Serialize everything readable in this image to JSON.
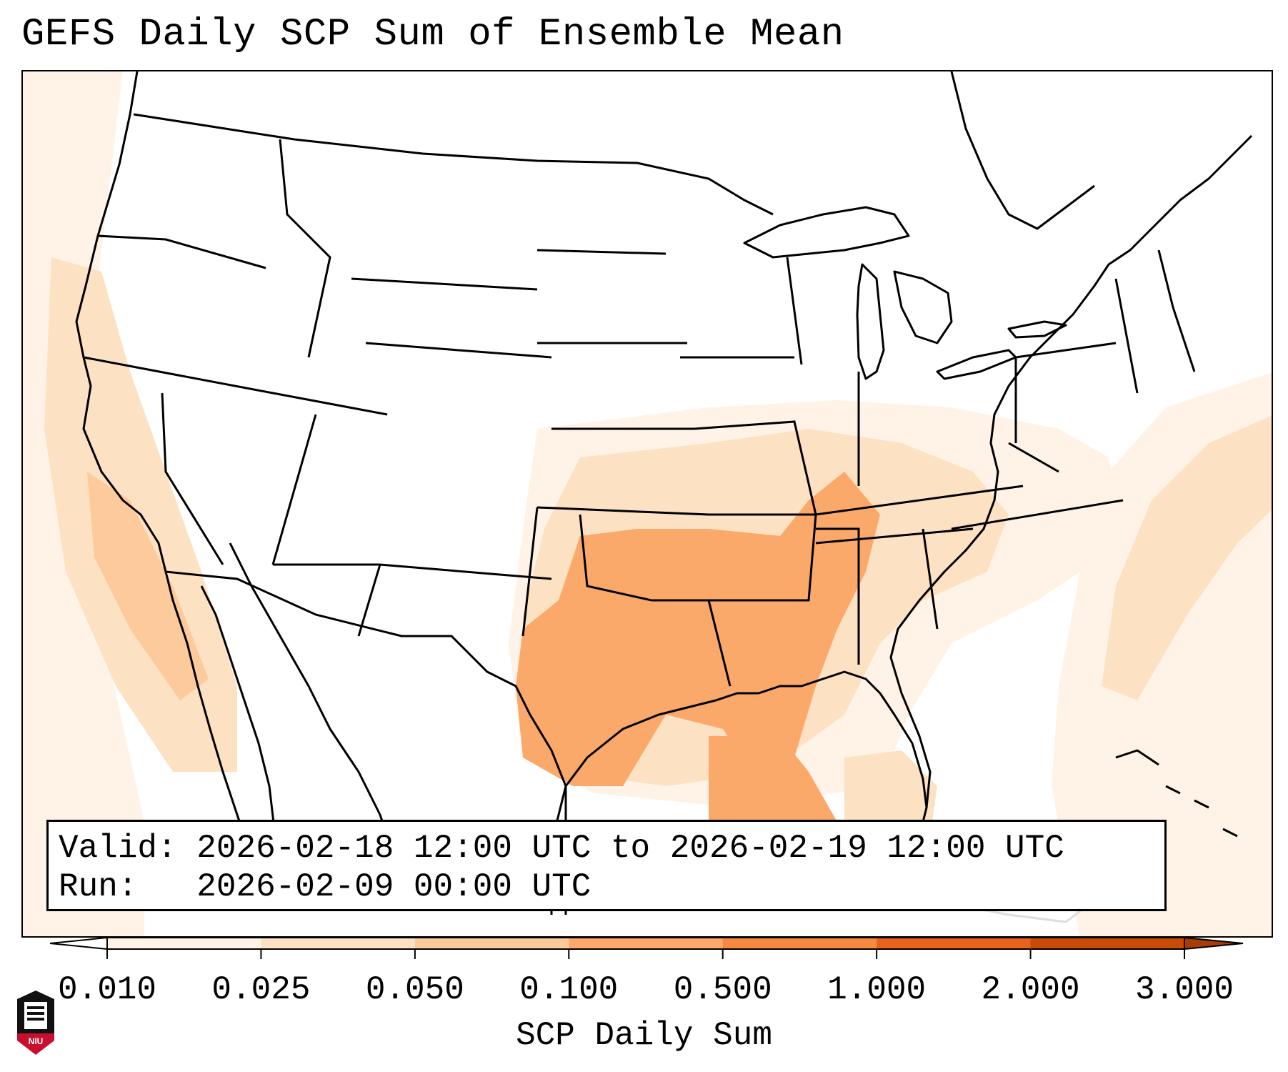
{
  "title": "GEFS Daily SCP Sum of Ensemble Mean",
  "info": {
    "valid_label": "Valid:",
    "valid_value": "2026-02-18 12:00 UTC to 2026-02-19 12:00 UTC",
    "run_label": "Run:",
    "run_value": "2026-02-09 00:00 UTC"
  },
  "colorbar": {
    "label": "SCP Daily Sum",
    "ticks": [
      "0.010",
      "0.025",
      "0.050",
      "0.100",
      "0.500",
      "1.000",
      "2.000",
      "3.000"
    ],
    "colors": [
      "#fff2e6",
      "#fde1c3",
      "#fdcb9b",
      "#fba96a",
      "#f6893f",
      "#e9621b",
      "#c94b07"
    ],
    "under_color": "#ffffff",
    "over_color": "#a83c05"
  },
  "map_colors": {
    "lines": "#000000",
    "faded_lines": "#dddddd"
  },
  "logo": {
    "text": "NIU"
  }
}
